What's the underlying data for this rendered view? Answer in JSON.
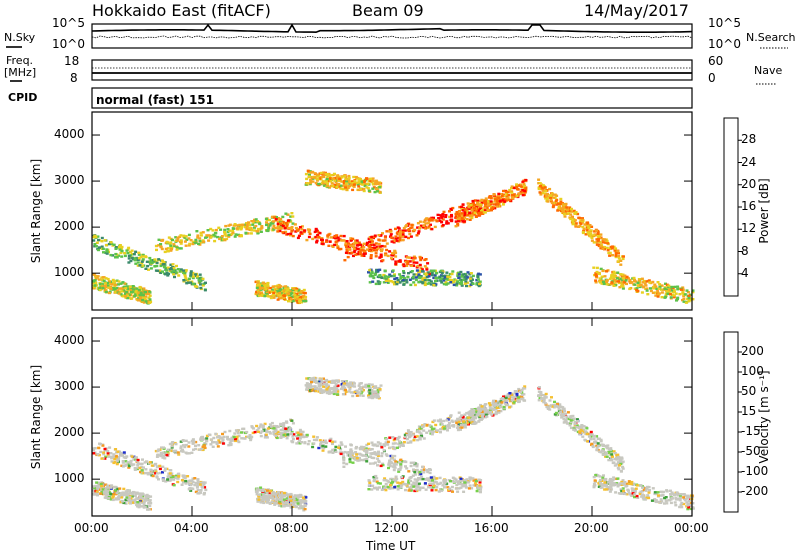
{
  "header": {
    "station": "Hokkaido East (fitACF)",
    "beam": "Beam 09",
    "date": "14/May/2017"
  },
  "noise_panel": {
    "left_label": "N.Sky",
    "right_label": "N.Search",
    "left_ticks": [
      "10^5",
      "10^0"
    ],
    "right_ticks": [
      "10^5",
      "10^0"
    ]
  },
  "freq_panel": {
    "left_label_line1": "Freq.",
    "left_label_line2": "[MHz]",
    "left_ticks": [
      "18",
      "8"
    ],
    "right_label": "Nave",
    "right_ticks": [
      "60",
      "0"
    ]
  },
  "cpid_panel": {
    "label": "CPID",
    "value": "normal (fast) 151"
  },
  "power_panel": {
    "ylabel": "Slant Range [km]",
    "yticks": [
      "4000",
      "3000",
      "2000",
      "1000"
    ],
    "colorbar_label": "Power [dB]",
    "colorbar_ticks": [
      "28",
      "24",
      "20",
      "16",
      "12",
      "8",
      "4"
    ],
    "colors": [
      "#0000ff",
      "#2a52a8",
      "#3b8a6b",
      "#5cc24a",
      "#e8d020",
      "#f5a623",
      "#ff6a00",
      "#ff0000"
    ]
  },
  "velocity_panel": {
    "ylabel": "Slant Range [km]",
    "yticks": [
      "4000",
      "3000",
      "2000",
      "1000"
    ],
    "colorbar_label": "Velocity [m s⁻¹]",
    "colorbar_ticks": [
      "200",
      "100",
      "50",
      "15",
      "-15",
      "-50",
      "-100",
      "-200"
    ],
    "colors": [
      "#1c2ccc",
      "#2a6a4c",
      "#3ea03a",
      "#76d04a",
      "#c8c8c0",
      "#f5c030",
      "#f59a20",
      "#ff6010",
      "#ff0000"
    ]
  },
  "xaxis": {
    "label": "Time UT",
    "ticks": [
      "00:00",
      "04:00",
      "08:00",
      "12:00",
      "16:00",
      "20:00",
      "00:00"
    ]
  },
  "chart_data": {
    "type": "heatmap",
    "x_range_hours": [
      0,
      24
    ],
    "y_range_km": [
      200,
      4500
    ],
    "power_db_range": [
      0,
      32
    ],
    "velocity_range": [
      -250,
      250
    ],
    "echo_bands": [
      {
        "t0": 0.0,
        "t1": 4.5,
        "r0": 1700,
        "r1": 800,
        "power": 14
      },
      {
        "t0": 0.0,
        "t1": 2.3,
        "r0": 850,
        "r1": 500,
        "power": 18
      },
      {
        "t0": 2.5,
        "t1": 8.0,
        "r0": 1600,
        "r1": 2200,
        "power": 18
      },
      {
        "t0": 7.2,
        "t1": 13.5,
        "r0": 2100,
        "r1": 1150,
        "power": 26
      },
      {
        "t0": 10.0,
        "t1": 15.8,
        "r0": 1450,
        "r1": 2550,
        "power": 27
      },
      {
        "t0": 14.5,
        "t1": 17.3,
        "r0": 2200,
        "r1": 2900,
        "power": 24
      },
      {
        "t0": 8.5,
        "t1": 11.5,
        "r0": 3100,
        "r1": 2900,
        "power": 20
      },
      {
        "t0": 17.8,
        "t1": 21.2,
        "r0": 2900,
        "r1": 1300,
        "power": 22
      },
      {
        "t0": 20.0,
        "t1": 24.0,
        "r0": 1000,
        "r1": 500,
        "power": 20
      },
      {
        "t0": 11.0,
        "t1": 15.5,
        "r0": 950,
        "r1": 900,
        "power": 12
      },
      {
        "t0": 6.5,
        "t1": 8.5,
        "r0": 700,
        "r1": 500,
        "power": 20
      }
    ]
  }
}
